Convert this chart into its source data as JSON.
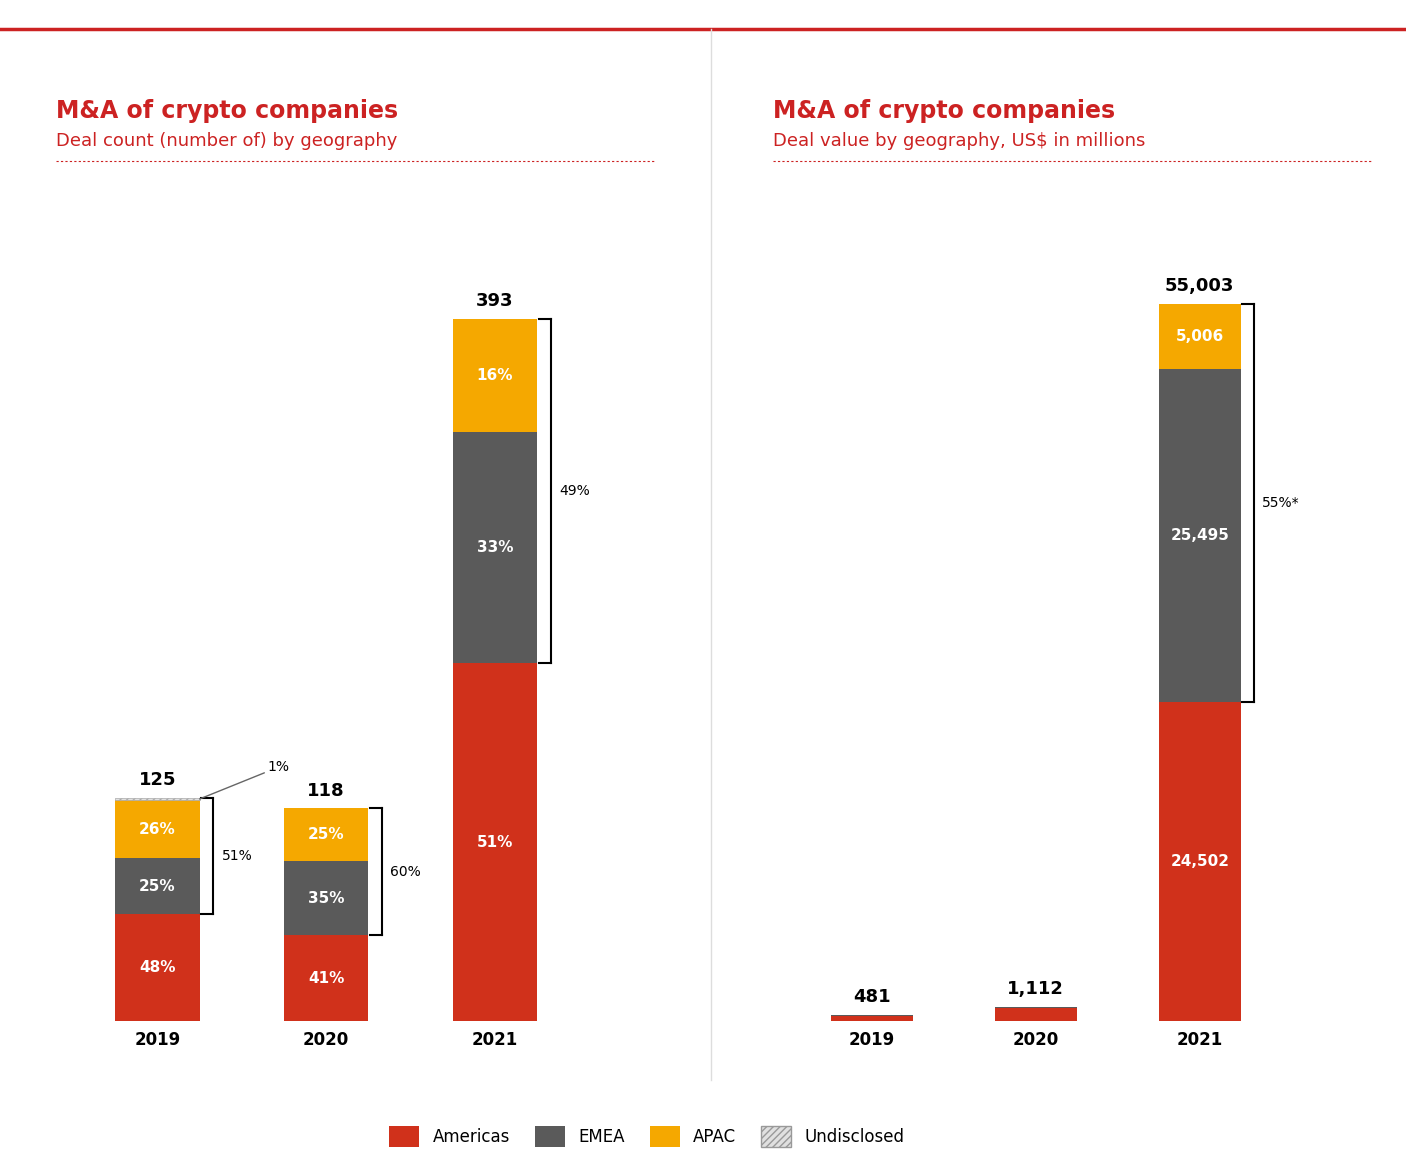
{
  "left_title1": "M&A of crypto companies",
  "left_title2": "Deal count (number of) by geography",
  "right_title1": "M&A of crypto companies",
  "right_title2": "Deal value by geography, US$ in millions",
  "count_years": [
    "2019",
    "2020",
    "2021"
  ],
  "count_totals": [
    125,
    118,
    393
  ],
  "count_americas": [
    0.48,
    0.41,
    0.51
  ],
  "count_emea": [
    0.25,
    0.35,
    0.33
  ],
  "count_apac": [
    0.26,
    0.25,
    0.16
  ],
  "count_undisclosed": [
    0.01,
    0.0,
    0.0
  ],
  "count_labels_americas": [
    "48%",
    "41%",
    "51%"
  ],
  "count_labels_emea": [
    "25%",
    "35%",
    "33%"
  ],
  "count_labels_apac": [
    "26%",
    "25%",
    "16%"
  ],
  "value_years": [
    "2019",
    "2020",
    "2021"
  ],
  "value_totals": [
    481,
    1112,
    55003
  ],
  "value_americas": [
    450,
    1000,
    24502
  ],
  "value_emea": [
    20,
    90,
    25495
  ],
  "value_apac": [
    11,
    22,
    5006
  ],
  "value_labels_americas": [
    "",
    "",
    "24,502"
  ],
  "value_labels_emea": [
    "",
    "",
    "25,495"
  ],
  "value_labels_apac": [
    "",
    "",
    "5,006"
  ],
  "color_americas": "#d0311b",
  "color_emea": "#5a5a5a",
  "color_apac": "#f5a800",
  "color_title": "#cc2222",
  "color_subtitle": "#cc2222",
  "bg_color": "#ffffff"
}
